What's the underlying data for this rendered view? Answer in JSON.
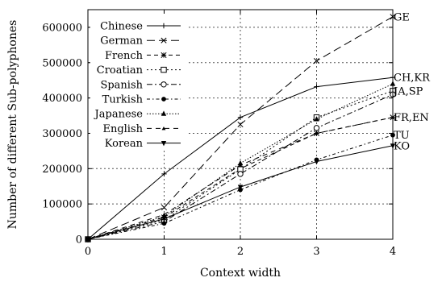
{
  "chart_data": {
    "type": "line",
    "xlabel": "Context width",
    "ylabel": "Number of different Sub-polyphones",
    "x": [
      0,
      1,
      2,
      3,
      4
    ],
    "xlim": [
      0,
      4
    ],
    "ylim": [
      0,
      650000
    ],
    "xticks": [
      "0",
      "1",
      "2",
      "3",
      "4"
    ],
    "yticks": [
      "0",
      "100000",
      "200000",
      "300000",
      "400000",
      "500000",
      "600000"
    ],
    "grid": true,
    "legend_position": "top-left",
    "series": [
      {
        "name": "Chinese",
        "marker": "plus",
        "dash": "solid",
        "values": [
          0,
          185000,
          345000,
          432000,
          458000
        ]
      },
      {
        "name": "German",
        "marker": "x",
        "dash": "long-dash",
        "values": [
          0,
          90000,
          325000,
          505000,
          630000
        ]
      },
      {
        "name": "French",
        "marker": "star",
        "dash": "short-dash",
        "values": [
          0,
          62000,
          200000,
          300000,
          345000
        ]
      },
      {
        "name": "Croatian",
        "marker": "square",
        "dash": "dotted",
        "values": [
          0,
          55000,
          198000,
          345000,
          420000
        ]
      },
      {
        "name": "Spanish",
        "marker": "circle",
        "dash": "dash-dot",
        "values": [
          0,
          50000,
          185000,
          315000,
          410000
        ]
      },
      {
        "name": "Turkish",
        "marker": "dot",
        "dash": "dash-dot-2",
        "values": [
          0,
          45000,
          140000,
          225000,
          295000
        ]
      },
      {
        "name": "Japanese",
        "marker": "triangle",
        "dash": "dense-dot",
        "values": [
          0,
          65000,
          215000,
          340000,
          440000
        ]
      },
      {
        "name": "English",
        "marker": "tri-small",
        "dash": "medium-dash",
        "values": [
          0,
          70000,
          210000,
          300000,
          345000
        ]
      },
      {
        "name": "Korean",
        "marker": "tri-down",
        "dash": "solid",
        "values": [
          0,
          58000,
          148000,
          220000,
          265000
        ]
      }
    ],
    "end_labels": [
      {
        "text": "GE",
        "value": 630000
      },
      {
        "text": "CH,KR",
        "value": 458000
      },
      {
        "text": "JA,SP",
        "value": 420000
      },
      {
        "text": "FR,EN",
        "value": 345000
      },
      {
        "text": "TU",
        "value": 295000
      },
      {
        "text": "KO",
        "value": 265000
      }
    ]
  }
}
